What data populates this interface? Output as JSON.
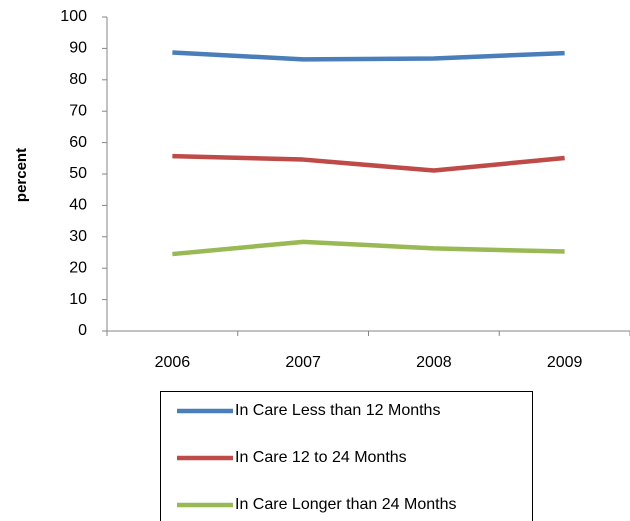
{
  "chart_data": {
    "type": "line",
    "y_label": "percent",
    "categories": [
      "2006",
      "2007",
      "2008",
      "2009"
    ],
    "series": [
      {
        "name": "In Care Less than 12 Months",
        "color": "#4a7ebb",
        "values": [
          88.7,
          86.5,
          86.8,
          88.5
        ]
      },
      {
        "name": "In Care 12 to 24 Months",
        "color": "#be4b48",
        "values": [
          55.7,
          54.6,
          51.1,
          55.1
        ]
      },
      {
        "name": "In Care Longer than 24 Months",
        "color": "#98b954",
        "values": [
          24.5,
          28.4,
          26.3,
          25.3
        ]
      }
    ],
    "ylim": [
      0,
      100
    ],
    "yticks": [
      0,
      10,
      20,
      30,
      40,
      50,
      60,
      70,
      80,
      90,
      100
    ],
    "grid": false,
    "legend": "bottom"
  }
}
